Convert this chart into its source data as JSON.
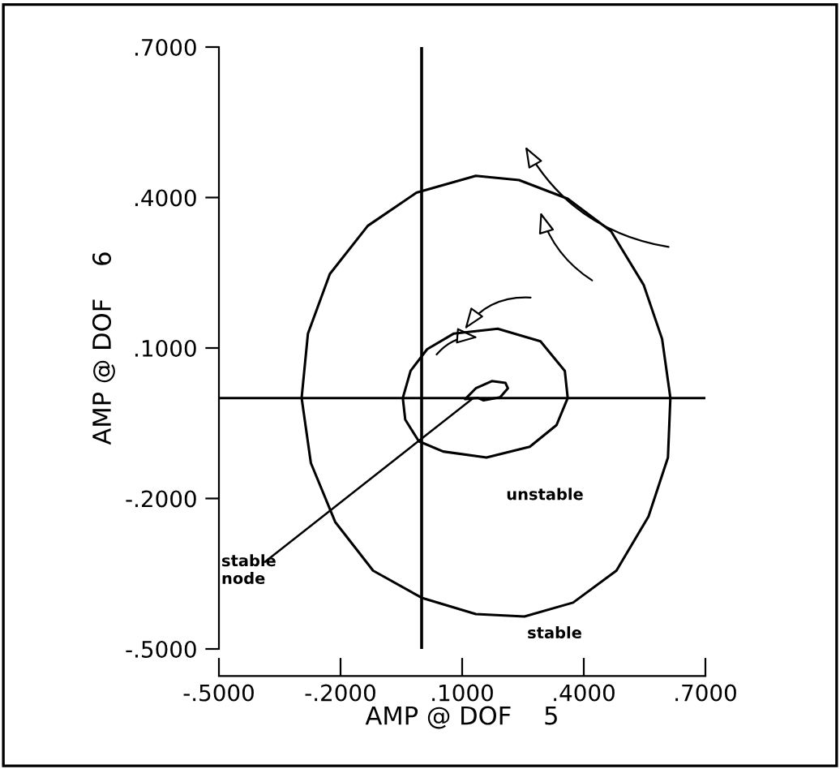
{
  "chart_data": {
    "type": "line",
    "xlabel": "AMP @ DOF    5",
    "ylabel": "AMP @ DOF    6",
    "xlim": [
      -0.5,
      0.7
    ],
    "ylim": [
      -0.5,
      0.7
    ],
    "xticks": [
      {
        "value": -0.5,
        "label": "-.5000"
      },
      {
        "value": -0.2,
        "label": "-.2000"
      },
      {
        "value": 0.1,
        "label": ".1000"
      },
      {
        "value": 0.4,
        "label": ".4000"
      },
      {
        "value": 0.7,
        "label": ".7000"
      }
    ],
    "yticks": [
      {
        "value": 0.7,
        "label": ".7000"
      },
      {
        "value": 0.4,
        "label": ".4000"
      },
      {
        "value": 0.1,
        "label": ".1000"
      },
      {
        "value": -0.2,
        "label": "-.2000"
      },
      {
        "value": -0.5,
        "label": "-.5000"
      }
    ],
    "grid": false,
    "legend": false,
    "marker": "none",
    "line_style": "solid",
    "series": [
      {
        "color": "#000000",
        "x": [
          -0.5,
          0.7
        ],
        "values": [
          0.0,
          0.0
        ]
      }
    ],
    "ref_lines": [
      {
        "axis": "x",
        "value": 0,
        "color": "#000000"
      }
    ],
    "annotations": [
      "stable\nnode",
      "unstable",
      "stable"
    ]
  }
}
